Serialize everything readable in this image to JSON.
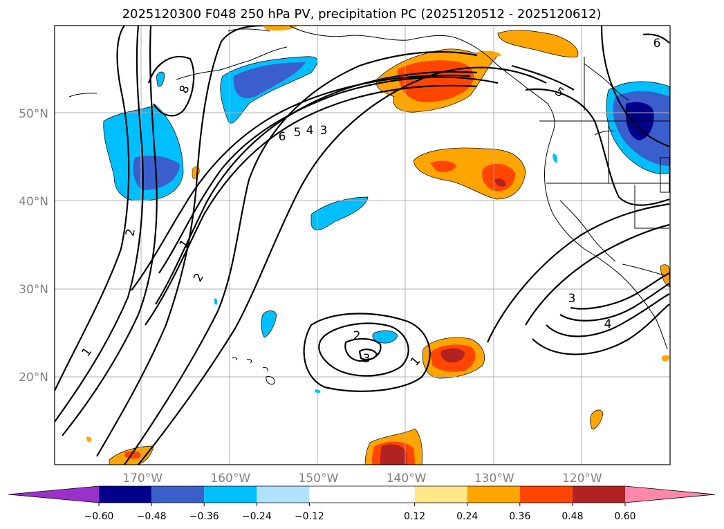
{
  "chart_data": {
    "type": "contour-map",
    "title": "2025120300 F048 250 hPa PV, precipitation PC (2025120512 - 2025120612)",
    "x_ticks": [
      "170°W",
      "160°W",
      "150°W",
      "140°W",
      "130°W",
      "120°W"
    ],
    "x_tick_values": [
      -170,
      -160,
      -150,
      -140,
      -130,
      -120
    ],
    "y_ticks": [
      "20°N",
      "30°N",
      "40°N",
      "50°N"
    ],
    "y_tick_values": [
      20,
      30,
      40,
      50
    ],
    "lon_range": [
      -180,
      -110
    ],
    "lat_range": [
      10,
      60
    ],
    "pv_contour_labels": [
      "8",
      "6",
      "5",
      "4",
      "3",
      "2",
      "1",
      "2",
      "1",
      "2",
      "3",
      "1",
      "3",
      "4",
      "5",
      "6"
    ],
    "colorbar": {
      "ticks": [
        "−0.60",
        "−0.48",
        "−0.36",
        "−0.24",
        "−0.12",
        "0.12",
        "0.24",
        "0.36",
        "0.48",
        "0.60"
      ],
      "tick_values": [
        -0.6,
        -0.48,
        -0.36,
        -0.24,
        -0.12,
        0.12,
        0.24,
        0.36,
        0.48,
        0.6
      ],
      "colors": [
        "#9932cc",
        "#00008b",
        "#3a5fcd",
        "#00bfff",
        "#b0e2ff",
        "#ffffff",
        "#ffe88a",
        "#ffa500",
        "#ff4500",
        "#b22222",
        "#ff88aa"
      ]
    }
  }
}
